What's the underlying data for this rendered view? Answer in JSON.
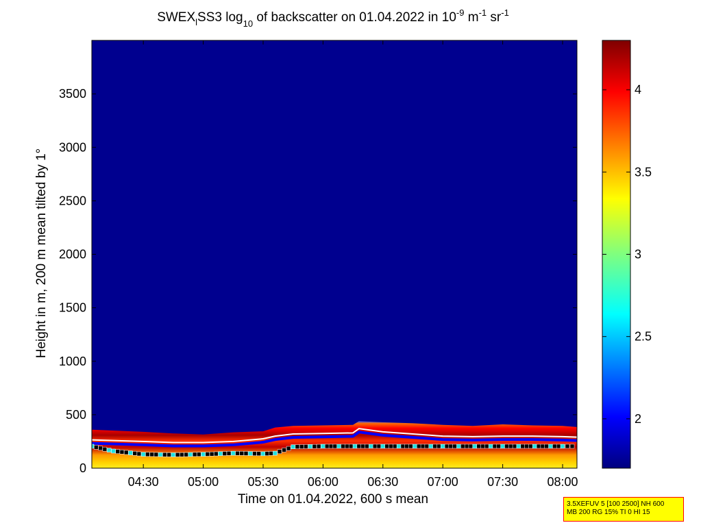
{
  "chart_data": {
    "type": "heatmap",
    "title": {
      "prefix": "SWEX",
      "prefix_sub": "l",
      "text1": "SS3 log",
      "log_base": "10",
      "text2": " of backscatter on 01.04.2022 in 10",
      "exp1": "-9",
      "text3": " m",
      "exp2": "-1",
      "text4": " sr",
      "exp3": "-1"
    },
    "xlabel": "Time on 01.04.2022, 600 s mean",
    "ylabel": "Height in m, 200 m mean tilted by 1°",
    "x_ticks": [
      "04:30",
      "05:00",
      "05:30",
      "06:00",
      "06:30",
      "07:00",
      "07:30",
      "08:00"
    ],
    "x_tick_hours": [
      4.5,
      5.0,
      5.5,
      6.0,
      6.5,
      7.0,
      7.5,
      8.0
    ],
    "xlim_hours": [
      4.07,
      8.12
    ],
    "y_ticks": [
      0,
      500,
      1000,
      1500,
      2000,
      2500,
      3000,
      3500
    ],
    "ylim": [
      0,
      4000
    ],
    "colorbar": {
      "ticks": [
        "2",
        "2.5",
        "3",
        "3.5",
        "4"
      ],
      "tick_values": [
        2,
        2.5,
        3,
        3.5,
        4
      ],
      "range": [
        1.7,
        4.3
      ],
      "colormap": "jet"
    },
    "background_value": 1.8,
    "boundary_layer": {
      "hours": [
        4.07,
        4.5,
        4.75,
        5.0,
        5.25,
        5.5,
        5.6,
        5.75,
        6.0,
        6.25,
        6.3,
        6.5,
        6.75,
        7.0,
        7.25,
        7.5,
        7.75,
        8.0,
        8.12
      ],
      "top_height": [
        360,
        340,
        325,
        315,
        335,
        345,
        380,
        395,
        400,
        405,
        440,
        430,
        420,
        405,
        395,
        410,
        400,
        395,
        385
      ],
      "white_line_height": [
        265,
        250,
        240,
        240,
        250,
        275,
        300,
        320,
        325,
        330,
        370,
        340,
        320,
        300,
        295,
        300,
        300,
        295,
        290
      ]
    },
    "mixing_layer_markers": {
      "hours": [
        4.07,
        4.25,
        4.5,
        4.75,
        5.0,
        5.25,
        5.5,
        5.6,
        5.75,
        6.0,
        6.5,
        7.0,
        7.5,
        8.0,
        8.12
      ],
      "height": [
        205,
        160,
        130,
        125,
        130,
        140,
        135,
        140,
        200,
        205,
        205,
        205,
        205,
        205,
        205
      ]
    },
    "info_box_lines": [
      "3.5XEFUV 5 [100 2500] NH 600",
      "MB 200 RG 15% TI 0 HI 15"
    ]
  }
}
